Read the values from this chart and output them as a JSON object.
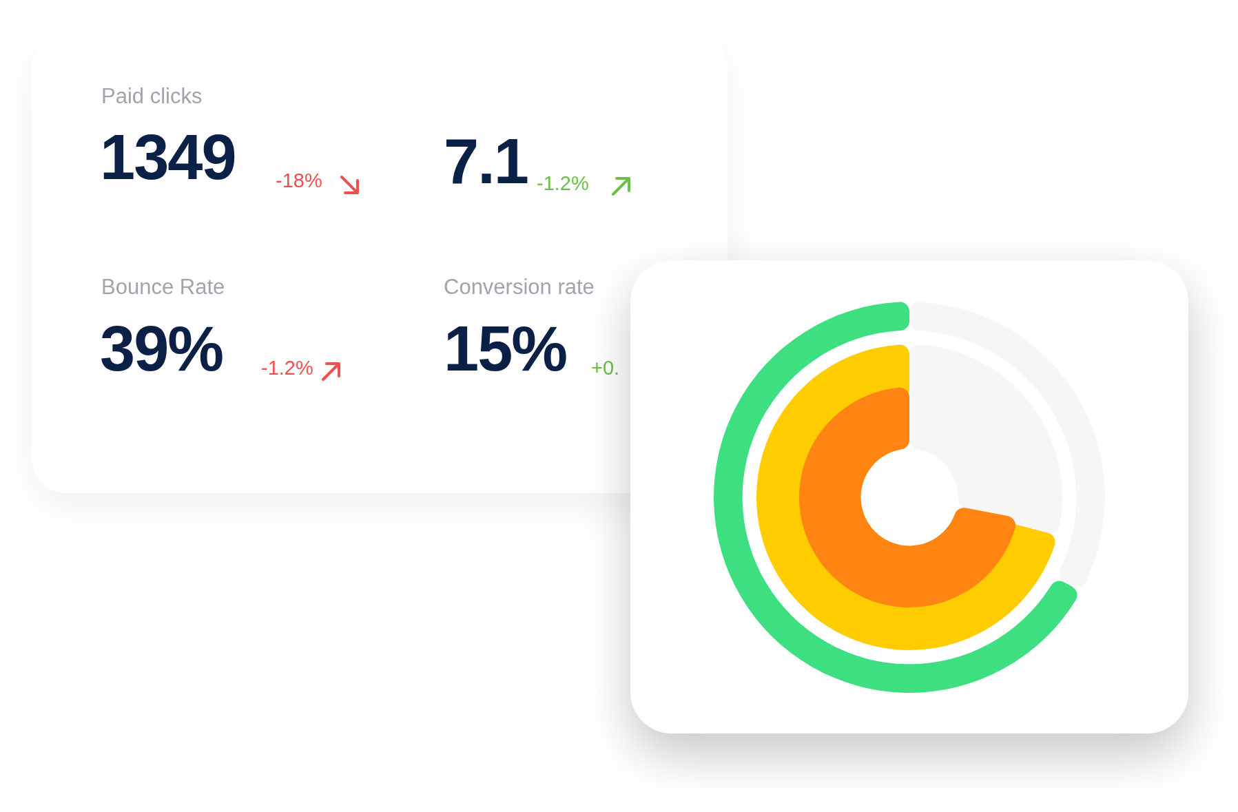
{
  "chart_data": [
    {
      "type": "other",
      "annotations": [
        "Paid clicks",
        "1349",
        "-18%",
        "Bounce Rate",
        "39%",
        "-1.2%",
        "7.1",
        "-1.2%",
        "Conversion rate",
        "15%",
        "+0."
      ]
    },
    {
      "type": "donut",
      "categories": [
        null,
        null
      ],
      "series": [
        {
          "values": [
            33,
            67
          ],
          "colors": [
            "#f6f6f6",
            "#3ddf80"
          ]
        },
        {
          "values": [
            29,
            71
          ],
          "colors": [
            "#f6f6f6",
            "#ffcc00"
          ]
        },
        {
          "values": [
            28,
            72
          ],
          "colors": [
            "#f6f6f6",
            "#ff8412"
          ]
        }
      ]
    }
  ]
}
